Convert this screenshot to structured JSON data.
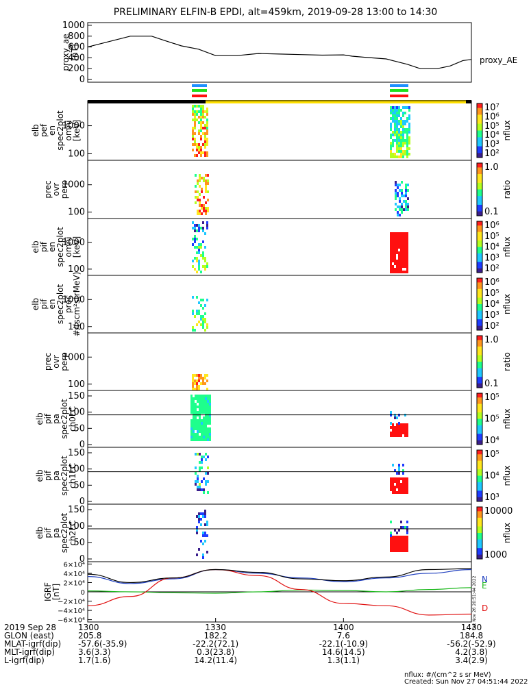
{
  "title": "PRELIMINARY ELFIN-B EPDI, alt=459km, 2019-09-28 13:00 to 14:30",
  "proxy_ae_label_right": "proxy_AE",
  "colors": {
    "black": "#000000",
    "blue": "#1f3fbf",
    "green": "#1cb81c",
    "red": "#e01010",
    "yellow": "#ffe000",
    "bar_blue": "#1e90ff",
    "bar_green": "#1ee01e",
    "bar_red": "#ff1010"
  },
  "chart_data": [
    {
      "type": "line",
      "name": "proxy_ae",
      "ylabel": [
        "proxy_ae",
        "[nT]"
      ],
      "yticks": [
        "1000",
        "800",
        "600",
        "400",
        "200",
        "0"
      ],
      "ylim": [
        -50,
        1050
      ],
      "x_minutes": [
        0,
        5,
        10,
        15,
        18,
        22,
        26,
        30,
        35,
        40,
        45,
        50,
        55,
        60,
        62,
        65,
        70,
        72,
        75,
        78,
        82,
        85,
        88,
        90
      ],
      "values": [
        600,
        700,
        800,
        800,
        720,
        620,
        560,
        440,
        440,
        480,
        470,
        460,
        450,
        455,
        430,
        410,
        380,
        340,
        280,
        200,
        200,
        250,
        350,
        370
      ],
      "series_label": "proxy_AE"
    },
    {
      "type": "heatmap",
      "name": "elb perf en spec2plot omni",
      "ylabel": [
        "elb",
        "pef",
        "en",
        "spec2plot",
        "omni",
        "[keV]"
      ],
      "yticks": [
        "1000",
        "100"
      ],
      "colorbar_ticks": [
        "10⁷",
        "10⁶",
        "10⁵",
        "10⁴",
        "10³",
        "10²"
      ],
      "colorbar_label": "nflux"
    },
    {
      "type": "heatmap",
      "name": "prec ovr perp",
      "ylabel": [
        "prec",
        "ovr",
        "perp"
      ],
      "yticks": [
        "1000",
        "100"
      ],
      "colorbar_ticks": [
        "1.0",
        "0.1"
      ],
      "colorbar_label": "ratio"
    },
    {
      "type": "heatmap",
      "name": "elb pif en spec2plot omni",
      "ylabel": [
        "elb",
        "pif",
        "en",
        "spec2plot",
        "omni",
        "[keV]"
      ],
      "yticks": [
        "1000",
        "100"
      ],
      "colorbar_ticks": [
        "10⁶",
        "10⁵",
        "10⁴",
        "10³",
        "10²"
      ],
      "colorbar_label": "nflux"
    },
    {
      "type": "heatmap",
      "name": "elb pif en spec2plot prec",
      "ylabel": [
        "elb",
        "pif",
        "en",
        "spec2plot",
        "prec",
        "#/(scm²strMeV)"
      ],
      "yticks": [
        "1000",
        "100"
      ],
      "colorbar_ticks": [
        "10⁶",
        "10⁵",
        "10⁴",
        "10³",
        "10²"
      ],
      "colorbar_label": "nflux"
    },
    {
      "type": "heatmap",
      "name": "prec ovr perp 2",
      "ylabel": [
        "prec",
        "ovr",
        "perp"
      ],
      "yticks": [
        "1000",
        "100"
      ],
      "colorbar_ticks": [
        "1.0",
        "0.1"
      ],
      "colorbar_label": "ratio"
    },
    {
      "type": "heatmap",
      "name": "elb pif pa spec2plot ch0LC",
      "ylabel": [
        "elb",
        "pif",
        "pa",
        "spec2plot",
        "ch0LC"
      ],
      "yticks": [
        "150",
        "100",
        "50",
        "0"
      ],
      "colorbar_ticks": [
        "10⁵",
        "10⁵",
        "10⁴"
      ],
      "colorbar_label": "nflux"
    },
    {
      "type": "heatmap",
      "name": "elb pif pa spec2plot ch1LC",
      "ylabel": [
        "elb",
        "pif",
        "pa",
        "spec2plot",
        "ch1LC"
      ],
      "yticks": [
        "150",
        "100",
        "50",
        "0"
      ],
      "colorbar_ticks": [
        "10⁵",
        "10⁴",
        "10³"
      ],
      "colorbar_label": "nflux"
    },
    {
      "type": "heatmap",
      "name": "elb pif pa spec2plot ch2LC",
      "ylabel": [
        "elb",
        "pif",
        "pa",
        "spec2plot",
        "ch2LC"
      ],
      "yticks": [
        "150",
        "100",
        "50",
        "0"
      ],
      "colorbar_ticks": [
        "10000",
        "1000"
      ],
      "colorbar_label": "nflux"
    },
    {
      "type": "line",
      "name": "IGRF",
      "ylabel": [
        "IGRF",
        "[nT]"
      ],
      "yticks": [
        "6×10⁴",
        "4×10⁴",
        "2×10⁴",
        "0",
        "−2×10⁴",
        "−4×10⁴",
        "−6×10⁴"
      ],
      "ylim": [
        -65000,
        65000
      ],
      "legend": [
        "N",
        "E",
        "D"
      ],
      "x_minutes": [
        0,
        10,
        20,
        30,
        40,
        50,
        60,
        70,
        80,
        90
      ],
      "series": [
        {
          "name": "N",
          "values": [
            33000,
            18000,
            28000,
            48000,
            40000,
            30000,
            22000,
            30000,
            40000,
            48000
          ],
          "color": "#1f3fbf"
        },
        {
          "name": "E",
          "values": [
            2000,
            0,
            -2000,
            -3000,
            0,
            4000,
            3000,
            0,
            5000,
            9000
          ],
          "color": "#1cb81c"
        },
        {
          "name": "D",
          "values": [
            -30000,
            -10000,
            30000,
            48000,
            35000,
            5000,
            -25000,
            -30000,
            -50000,
            -48000
          ],
          "color": "#e01010"
        },
        {
          "name": "",
          "values": [
            38000,
            20000,
            30000,
            48000,
            42000,
            28000,
            24000,
            32000,
            48000,
            50000
          ],
          "color": "#000000"
        }
      ]
    }
  ],
  "x_axis": {
    "ticks": [
      "1300",
      "1330",
      "1400",
      "1430"
    ]
  },
  "footer": {
    "rows": [
      {
        "label": "2019 Sep 28",
        "v1": "1300",
        "v2": "1330",
        "v3": "1400",
        "v4": "1430"
      },
      {
        "label": "GLON (east)",
        "v1": "205.8",
        "v2": "182.2",
        "v3": "7.6",
        "v4": "184.8"
      },
      {
        "label": "MLAT-igrf(dip)",
        "v1": "-57.6(-35.9)",
        "v2": "-22.2(72.1)",
        "v3": "-22.1(-10.9)",
        "v4": "-56.2(-52.9)"
      },
      {
        "label": "MLT-igrf(dip)",
        "v1": "3.6(3.3)",
        "v2": "0.3(23.8)",
        "v3": "14.6(14.5)",
        "v4": "4.2(3.8)"
      },
      {
        "label": "L-igrf(dip)",
        "v1": "1.7(1.6)",
        "v2": "14.2(11.4)",
        "v3": "1.3(1.1)",
        "v4": "3.4(2.9)"
      }
    ],
    "units_note": "nflux: #/(cm^2 s sr MeV)",
    "created": "Created: Sun Nov 27 04:51:44 2022",
    "side_stamp": "Sat Nov 26 20:51:44 2022"
  }
}
